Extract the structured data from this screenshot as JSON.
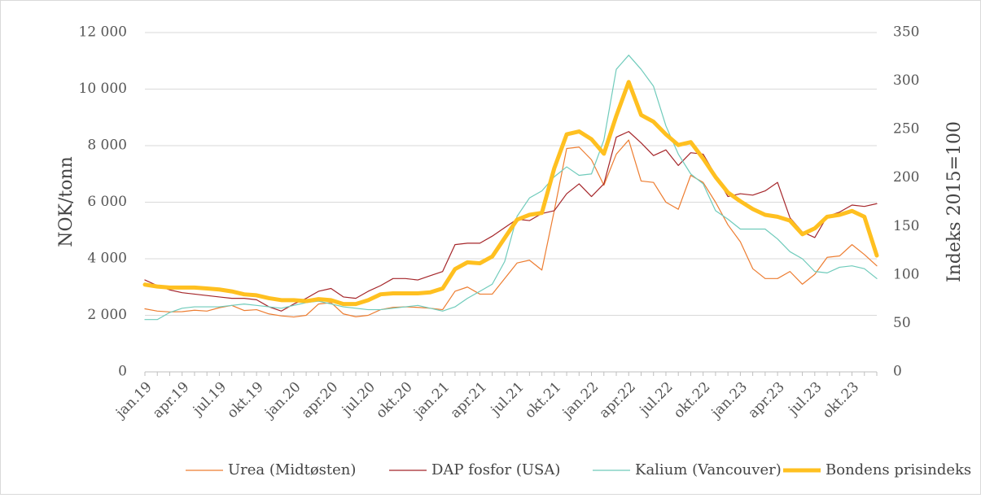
{
  "chart_data": {
    "type": "line",
    "ylabel": "NOK/tonn",
    "y2label": "Indeks 2015=100",
    "categories": [
      "jan.19",
      null,
      null,
      "apr.19",
      null,
      null,
      "jul.19",
      null,
      null,
      "okt.19",
      null,
      null,
      "jan.20",
      null,
      null,
      "apr.20",
      null,
      null,
      "jul.20",
      null,
      null,
      "okt.20",
      null,
      null,
      "jan.21",
      null,
      null,
      "apr.21",
      null,
      null,
      "jul.21",
      null,
      null,
      "okt.21",
      null,
      null,
      "jan.22",
      null,
      null,
      "apr.22",
      null,
      null,
      "jul.22",
      null,
      null,
      "okt.22",
      null,
      null,
      "jan.23",
      null,
      null,
      "apr.23",
      null,
      null,
      "jul.23",
      null,
      null,
      "okt.23",
      null,
      null
    ],
    "ylim": [
      0,
      12000
    ],
    "yticks": [
      0,
      {
        "value": 2000,
        "label": "2 000"
      },
      {
        "value": 4000,
        "label": "4 000"
      },
      {
        "value": 6000,
        "label": "6 000"
      },
      {
        "value": 8000,
        "label": "8 000"
      },
      {
        "value": 10000,
        "label": "10 000"
      },
      {
        "value": 12000,
        "label": "12 000"
      }
    ],
    "y2lim": [
      0,
      350
    ],
    "y2ticks": [
      0,
      50,
      100,
      150,
      200,
      250,
      300,
      350
    ],
    "grid": true,
    "legend": "bottom",
    "series": [
      {
        "name": "Urea (Midtøsten)",
        "color": "#ed7d31",
        "width": 1.2,
        "values": [
          2230,
          2150,
          2120,
          2130,
          2180,
          2150,
          2270,
          2350,
          2170,
          2200,
          2050,
          1980,
          1940,
          2000,
          2400,
          2450,
          2050,
          1950,
          2000,
          2200,
          2280,
          2300,
          2280,
          2250,
          2200,
          2850,
          3000,
          2750,
          2750,
          3300,
          3850,
          3950,
          3600,
          5700,
          7900,
          7950,
          7500,
          6600,
          7700,
          8200,
          6750,
          6700,
          6000,
          5750,
          6950,
          6700,
          6000,
          5200,
          4600,
          3650,
          3300,
          3300,
          3550,
          3100,
          3450,
          4050,
          4100,
          4500,
          4150,
          3750
        ]
      },
      {
        "name": "DAP fosfor (USA)",
        "color": "#a5262a",
        "width": 1.2,
        "values": [
          3250,
          3050,
          2900,
          2800,
          2750,
          2700,
          2650,
          2600,
          2600,
          2550,
          2300,
          2150,
          2400,
          2600,
          2850,
          2950,
          2650,
          2600,
          2850,
          3050,
          3300,
          3300,
          3250,
          3400,
          3550,
          4500,
          4550,
          4550,
          4800,
          5100,
          5400,
          5350,
          5600,
          5700,
          6300,
          6650,
          6200,
          6650,
          8300,
          8500,
          8100,
          7650,
          7850,
          7300,
          7750,
          7700,
          6950,
          6200,
          6300,
          6250,
          6400,
          6700,
          5450,
          4950,
          4750,
          5500,
          5650,
          5900,
          5850,
          5950
        ]
      },
      {
        "name": "Kalium (Vancouver)",
        "color": "#6fcbbb",
        "width": 1.2,
        "values": [
          1850,
          1850,
          2100,
          2250,
          2300,
          2300,
          2300,
          2350,
          2400,
          2350,
          2300,
          2250,
          2350,
          2450,
          2500,
          2400,
          2300,
          2250,
          2200,
          2200,
          2250,
          2300,
          2350,
          2250,
          2150,
          2300,
          2600,
          2850,
          3100,
          3900,
          5500,
          6150,
          6400,
          6900,
          7250,
          6950,
          7000,
          8200,
          10700,
          11200,
          10700,
          10100,
          8700,
          7700,
          7000,
          6650,
          5700,
          5400,
          5050,
          5050,
          5050,
          4700,
          4250,
          4000,
          3550,
          3500,
          3700,
          3750,
          3650,
          3300
        ]
      },
      {
        "name": "Bondens prisindeks",
        "color": "#ffc020",
        "width": 5,
        "axis": "y2",
        "values": [
          90,
          88,
          87,
          87,
          87,
          86,
          85,
          83,
          80,
          79,
          76,
          74,
          74,
          73,
          75,
          74,
          70,
          70,
          74,
          80,
          81,
          81,
          81,
          82,
          86,
          106,
          113,
          112,
          119,
          138,
          157,
          162,
          164,
          210,
          245,
          248,
          240,
          225,
          264,
          299,
          265,
          258,
          245,
          234,
          237,
          220,
          201,
          185,
          176,
          168,
          162,
          160,
          156,
          142,
          148,
          160,
          162,
          166,
          160,
          120
        ]
      }
    ]
  }
}
